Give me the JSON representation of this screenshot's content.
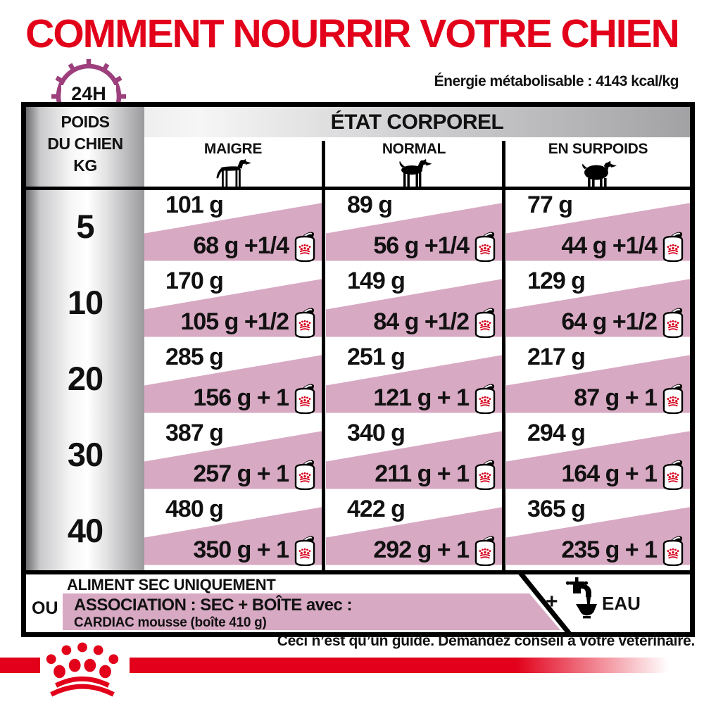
{
  "title": "COMMENT NOURRIR VOTRE CHIEN",
  "header": {
    "clock_label": "24H",
    "energy": "Énergie métabolisable : 4143 kcal/kg"
  },
  "table": {
    "weight_column": {
      "lines": [
        "POIDS",
        "DU CHIEN",
        "KG"
      ]
    },
    "condition_header": "ÉTAT CORPOREL",
    "columns": [
      {
        "label": "MAIGRE",
        "icon": "thin-dog-icon"
      },
      {
        "label": "NORMAL",
        "icon": "normal-dog-icon"
      },
      {
        "label": "EN SURPOIDS",
        "icon": "overweight-dog-icon"
      }
    ],
    "rows": [
      {
        "weight": "5",
        "cells": [
          {
            "dry": "101 g",
            "mix": "68 g +1/4"
          },
          {
            "dry": "89 g",
            "mix": "56 g +1/4"
          },
          {
            "dry": "77 g",
            "mix": "44 g +1/4"
          }
        ]
      },
      {
        "weight": "10",
        "cells": [
          {
            "dry": "170 g",
            "mix": "105 g +1/2"
          },
          {
            "dry": "149 g",
            "mix": "84 g +1/2"
          },
          {
            "dry": "129 g",
            "mix": "64 g +1/2"
          }
        ]
      },
      {
        "weight": "20",
        "cells": [
          {
            "dry": "285 g",
            "mix": "156 g + 1"
          },
          {
            "dry": "251 g",
            "mix": "121 g + 1"
          },
          {
            "dry": "217 g",
            "mix": "87 g + 1"
          }
        ]
      },
      {
        "weight": "30",
        "cells": [
          {
            "dry": "387 g",
            "mix": "257 g + 1"
          },
          {
            "dry": "340 g",
            "mix": "211 g + 1"
          },
          {
            "dry": "294 g",
            "mix": "164 g + 1"
          }
        ]
      },
      {
        "weight": "40",
        "cells": [
          {
            "dry": "480 g",
            "mix": "350 g + 1"
          },
          {
            "dry": "422 g",
            "mix": "292 g + 1"
          },
          {
            "dry": "365 g",
            "mix": "235 g + 1"
          }
        ]
      }
    ]
  },
  "legend": {
    "dry_only": "ALIMENT SEC UNIQUEMENT",
    "or": "OU",
    "association": "ASSOCIATION : SEC + BOÎTE avec :",
    "association_detail": "CARDIAC mousse (boîte 410 g)",
    "water_plus": "+",
    "water": "EAU"
  },
  "footer": {
    "guide": "Ceci n’est qu’un guide. Demandez conseil à votre vétérinaire."
  },
  "colors": {
    "brand_red": "#E2001A",
    "pink": "#D8A9C3",
    "clock_purple": "#9C3F7C",
    "silver": "#A2A2A5"
  }
}
